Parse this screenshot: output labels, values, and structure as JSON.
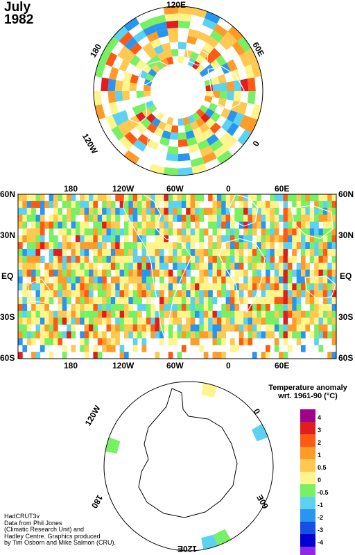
{
  "title": {
    "month": "July",
    "year": "1982"
  },
  "north_polar": {
    "labels": {
      "top": "120E",
      "upper_left": "180",
      "upper_right": "60E",
      "lower_left": "120W",
      "lower_right": "0"
    }
  },
  "world_map": {
    "top_labels": [
      "180",
      "120W",
      "60W",
      "0",
      "60E"
    ],
    "bottom_labels": [
      "180",
      "120W",
      "60W",
      "0",
      "60E"
    ],
    "left_labels": [
      "60N",
      "30N",
      "EQ",
      "30S",
      "60S"
    ],
    "right_labels": [
      "60N",
      "30N",
      "EQ",
      "30S",
      "60S"
    ]
  },
  "south_polar": {
    "labels": {
      "upper_left": "120W",
      "right": "0",
      "lower_left": "180",
      "lower_right": "60E",
      "bottom": "120E"
    }
  },
  "legend": {
    "title_line1": "Temperature anomaly",
    "title_line2": "wrt. 1961-90  (°C)",
    "bins": [
      {
        "label": "4",
        "color": "#a0008c"
      },
      {
        "label": "3",
        "color": "#e01e1e"
      },
      {
        "label": "2",
        "color": "#ff5a14"
      },
      {
        "label": "1",
        "color": "#ff9b28"
      },
      {
        "label": "0.5",
        "color": "#ffc850"
      },
      {
        "label": "0",
        "color": "#fff58c"
      },
      {
        "label": "-0.5",
        "color": "#78f064"
      },
      {
        "label": "-1",
        "color": "#5ad2f0"
      },
      {
        "label": "-2",
        "color": "#2896f0"
      },
      {
        "label": "-3",
        "color": "#1450e6"
      },
      {
        "label": "-4",
        "color": "#0000d2"
      },
      {
        "label": "",
        "color": "#8c28e6"
      }
    ]
  },
  "credit": {
    "line1": "HadCRUT3v",
    "line2": "Data from Phil Jones",
    "line3": "(Climatic Research Unit) and",
    "line4": "Hadley Centre.  Graphics produced",
    "line5": "by Tim Osborn and Mike Salmon (CRU)."
  }
}
